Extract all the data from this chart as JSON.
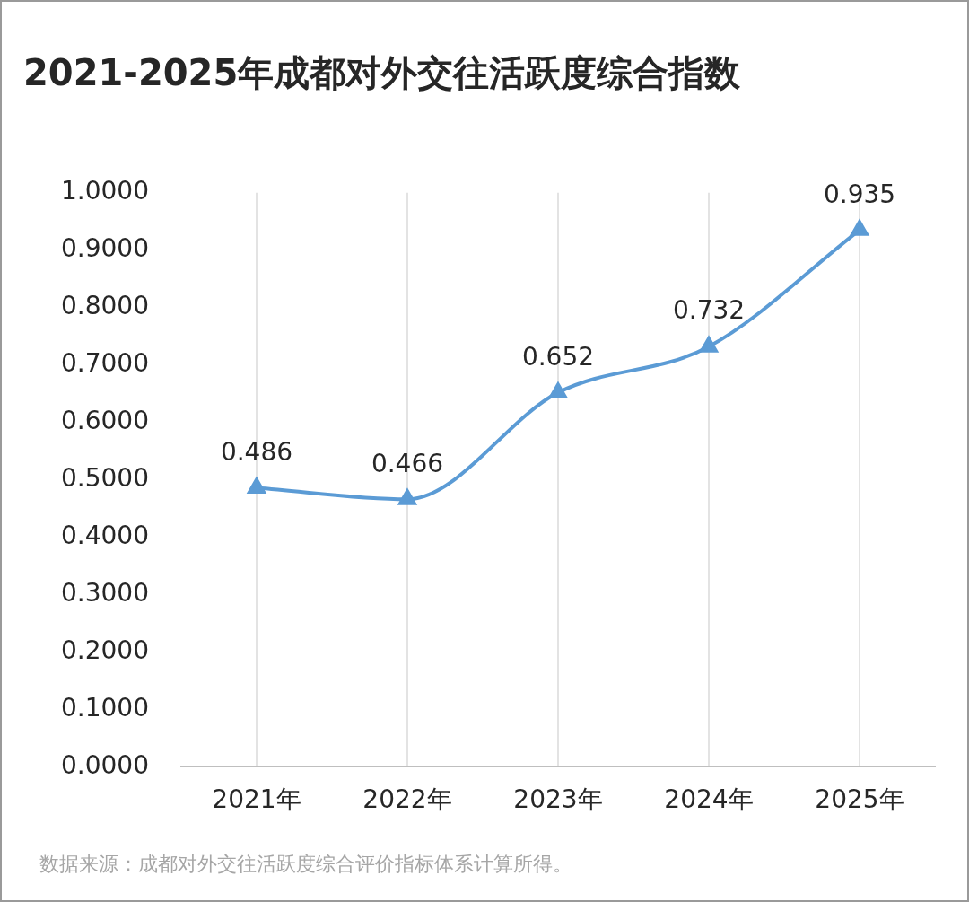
{
  "chart_data": {
    "type": "line",
    "title": "2021-2025年成都对外交往活跃度综合指数",
    "categories": [
      "2021年",
      "2022年",
      "2023年",
      "2024年",
      "2025年"
    ],
    "series": [
      {
        "color": "#5b9bd5",
        "values": [
          0.486,
          0.466,
          0.652,
          0.732,
          0.935
        ]
      }
    ],
    "ylim": [
      0,
      1
    ],
    "yticks": [
      {
        "value": 0,
        "label": "0.0000"
      },
      {
        "value": 0.1,
        "label": "0.1000"
      },
      {
        "value": 0.2,
        "label": "0.2000"
      },
      {
        "value": 0.3,
        "label": "0.3000"
      },
      {
        "value": 0.4,
        "label": "0.4000"
      },
      {
        "value": 0.5,
        "label": "0.5000"
      },
      {
        "value": 0.6,
        "label": "0.6000"
      },
      {
        "value": 0.7,
        "label": "0.7000"
      },
      {
        "value": 0.8,
        "label": "0.8000"
      },
      {
        "value": 0.9,
        "label": "0.9000"
      },
      {
        "value": 1,
        "label": "1.0000"
      }
    ],
    "grid": "x",
    "legend": false,
    "marker": "triangle",
    "line_style": "solid",
    "data_labels": true,
    "annotations": [
      "数据来源：成都对外交往活跃度综合评价指标体系计算所得。"
    ]
  }
}
